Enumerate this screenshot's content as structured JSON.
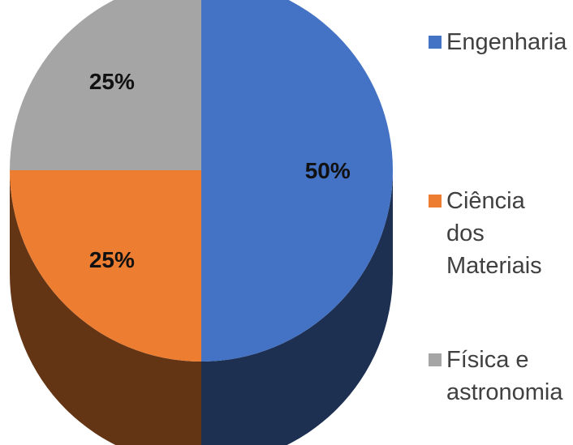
{
  "chart_data": {
    "type": "pie",
    "title": "",
    "categories": [
      "Engenharia",
      "Ciência dos Materiais",
      "Física e astronomia"
    ],
    "values": [
      50,
      25,
      25
    ],
    "labels": [
      "50%",
      "25%",
      "25%"
    ],
    "colors": [
      "#4472c4",
      "#ed7d31",
      "#a5a5a5"
    ],
    "legend_position": "right",
    "three_d": true
  }
}
